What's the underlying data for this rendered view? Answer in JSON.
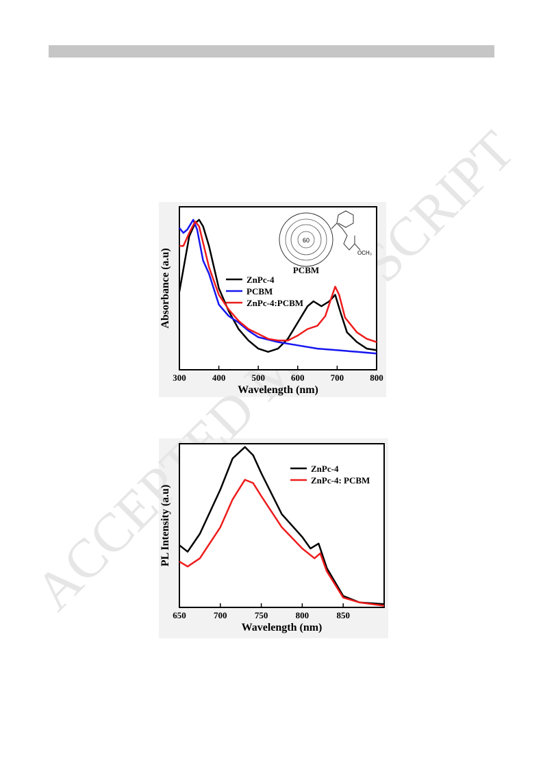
{
  "watermark": "ACCEPTED MANUSCRIPT",
  "chart_data": [
    {
      "type": "line",
      "xlabel": "Wavelength (nm)",
      "ylabel": "Absorbance (a.u)",
      "xlim": [
        300,
        800
      ],
      "xticks": [
        300,
        400,
        500,
        600,
        700,
        800
      ],
      "ylim": [
        0,
        1
      ],
      "legend": "left",
      "annotations": [
        "60",
        "PCBM",
        "OCH₃"
      ],
      "series": [
        {
          "name": "ZnPc-4",
          "color": "#000000",
          "x": [
            300,
            325,
            340,
            350,
            360,
            375,
            400,
            425,
            450,
            475,
            500,
            525,
            550,
            575,
            600,
            625,
            640,
            660,
            680,
            695,
            710,
            725,
            750,
            775,
            800
          ],
          "values": [
            0.48,
            0.82,
            0.9,
            0.92,
            0.88,
            0.76,
            0.5,
            0.36,
            0.25,
            0.18,
            0.13,
            0.11,
            0.13,
            0.19,
            0.29,
            0.39,
            0.42,
            0.39,
            0.42,
            0.46,
            0.34,
            0.23,
            0.17,
            0.13,
            0.12
          ]
        },
        {
          "name": "PCBM",
          "color": "#1515f0",
          "x": [
            300,
            310,
            320,
            335,
            345,
            360,
            375,
            400,
            425,
            450,
            475,
            500,
            550,
            600,
            650,
            700,
            750,
            800
          ],
          "values": [
            0.87,
            0.84,
            0.86,
            0.92,
            0.86,
            0.67,
            0.59,
            0.4,
            0.33,
            0.29,
            0.24,
            0.2,
            0.17,
            0.15,
            0.13,
            0.12,
            0.11,
            0.1
          ]
        },
        {
          "name": "ZnPc-4:PCBM",
          "color": "#ee1c1c",
          "x": [
            300,
            310,
            325,
            340,
            350,
            375,
            400,
            425,
            450,
            475,
            500,
            525,
            550,
            575,
            600,
            625,
            650,
            670,
            685,
            695,
            705,
            720,
            750,
            775,
            800
          ],
          "values": [
            0.76,
            0.76,
            0.84,
            0.91,
            0.88,
            0.63,
            0.46,
            0.37,
            0.3,
            0.25,
            0.22,
            0.19,
            0.18,
            0.18,
            0.21,
            0.25,
            0.27,
            0.33,
            0.44,
            0.51,
            0.46,
            0.32,
            0.23,
            0.19,
            0.17
          ]
        }
      ]
    },
    {
      "type": "line",
      "xlabel": "Wavelength (nm)",
      "ylabel": "PL Intensity (a.u)",
      "xlim": [
        650,
        900
      ],
      "xticks": [
        650,
        700,
        750,
        800,
        850
      ],
      "ylim": [
        0,
        1
      ],
      "legend": "upper right",
      "series": [
        {
          "name": "ZnPc-4",
          "color": "#000000",
          "x": [
            650,
            660,
            675,
            700,
            715,
            730,
            740,
            750,
            775,
            800,
            810,
            820,
            830,
            850,
            870,
            900
          ],
          "values": [
            0.38,
            0.34,
            0.45,
            0.72,
            0.91,
            0.98,
            0.93,
            0.82,
            0.57,
            0.43,
            0.36,
            0.39,
            0.24,
            0.07,
            0.03,
            0.02
          ]
        },
        {
          "name": "ZnPc-4: PCBM",
          "color": "#ee1c1c",
          "x": [
            650,
            660,
            675,
            700,
            715,
            730,
            740,
            750,
            775,
            800,
            815,
            822,
            830,
            850,
            870,
            900
          ],
          "values": [
            0.28,
            0.25,
            0.3,
            0.49,
            0.66,
            0.78,
            0.76,
            0.68,
            0.49,
            0.36,
            0.3,
            0.33,
            0.22,
            0.06,
            0.03,
            0.01
          ]
        }
      ]
    }
  ]
}
